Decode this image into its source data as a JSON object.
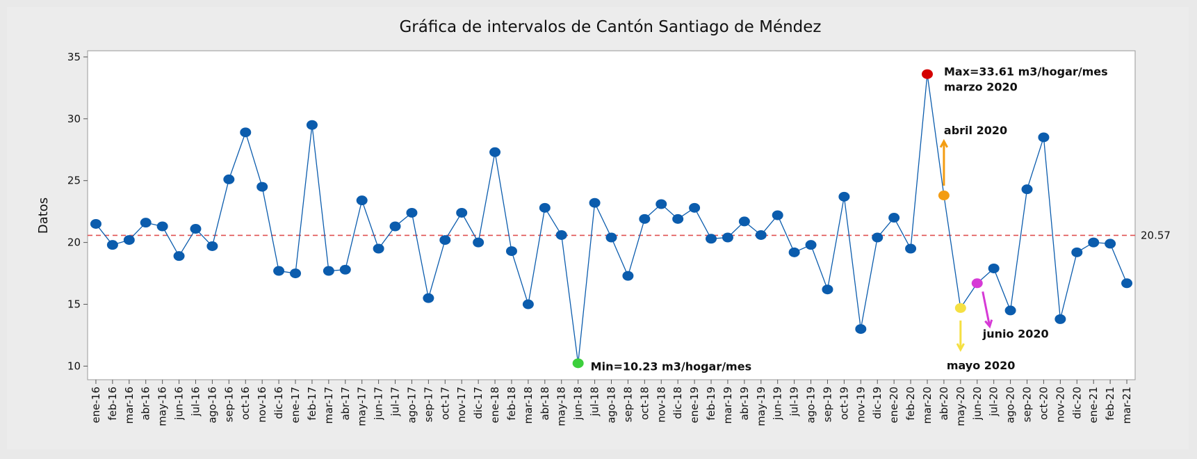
{
  "chart_data": {
    "type": "line",
    "title": "Gráfica de intervalos de Cantón Santiago de Méndez",
    "y_label": "Datos",
    "categories": [
      "ene-16",
      "feb-16",
      "mar-16",
      "abr-16",
      "may-16",
      "jun-16",
      "jul-16",
      "ago-16",
      "sep-16",
      "oct-16",
      "nov-16",
      "dic-16",
      "ene-17",
      "feb-17",
      "mar-17",
      "abr-17",
      "may-17",
      "jun-17",
      "jul-17",
      "ago-17",
      "sep-17",
      "oct-17",
      "nov-17",
      "dic-17",
      "ene-18",
      "feb-18",
      "mar-18",
      "abr-18",
      "may-18",
      "jun-18",
      "jul-18",
      "ago-18",
      "sep-18",
      "oct-18",
      "nov-18",
      "dic-18",
      "ene-19",
      "feb-19",
      "mar-19",
      "abr-19",
      "may-19",
      "jun-19",
      "jul-19",
      "ago-19",
      "sep-19",
      "oct-19",
      "nov-19",
      "dic-19",
      "ene-20",
      "feb-20",
      "mar-20",
      "abr-20",
      "may-20",
      "jun-20",
      "jul-20",
      "ago-20",
      "sep-20",
      "oct-20",
      "nov-20",
      "dic-20",
      "ene-21",
      "feb-21",
      "mar-21"
    ],
    "values": [
      21.5,
      19.8,
      20.2,
      21.6,
      21.3,
      18.9,
      21.1,
      19.7,
      25.1,
      28.9,
      24.5,
      17.7,
      17.5,
      29.5,
      17.7,
      17.8,
      23.4,
      19.5,
      21.3,
      22.4,
      15.5,
      20.2,
      22.4,
      20.0,
      27.3,
      19.3,
      15.0,
      22.8,
      20.6,
      10.23,
      23.2,
      20.4,
      17.3,
      21.9,
      23.1,
      21.9,
      22.8,
      20.3,
      20.4,
      21.7,
      20.6,
      22.2,
      19.2,
      19.8,
      16.2,
      23.7,
      13.0,
      20.4,
      22.0,
      19.5,
      33.61,
      23.8,
      14.7,
      16.7,
      17.9,
      14.5,
      24.3,
      28.5,
      13.8,
      19.2,
      20.0,
      19.9,
      16.7
    ],
    "color": "#0b5cad",
    "point_colors": {
      "jun-18": "#3ccf3c",
      "mar-20": "#d40000",
      "abr-20": "#f39c12",
      "may-20": "#f5e042",
      "jun-20": "#d63ad6"
    },
    "ylim": [
      8.9,
      35.5
    ],
    "yticks": [
      10,
      15,
      20,
      25,
      30,
      35
    ],
    "reference_line": {
      "value": 20.57,
      "color": "#e05050"
    },
    "annotations": [
      {
        "text": "Max=33.61 m3/hogar/mes",
        "category": "mar-20"
      },
      {
        "text": "marzo 2020",
        "category": "mar-20"
      },
      {
        "text": "Min=10.23 m3/hogar/mes",
        "category": "jun-18"
      },
      {
        "text": "abril 2020",
        "category": "abr-20"
      },
      {
        "text": "mayo 2020",
        "category": "may-20"
      },
      {
        "text": "junio 2020",
        "category": "jun-20"
      }
    ]
  }
}
